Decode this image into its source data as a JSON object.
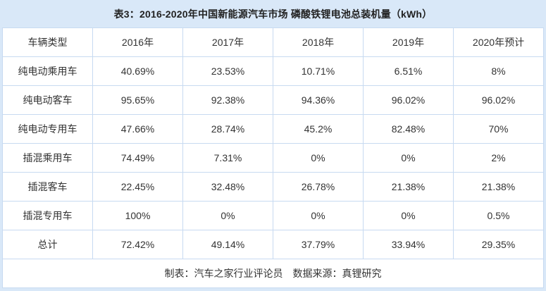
{
  "page": {
    "title": "表3：2016-2020年中国新能源汽车市场 磷酸铁锂电池总装机量（kWh）"
  },
  "table": {
    "columns": [
      "车辆类型",
      "2016年",
      "2017年",
      "2018年",
      "2019年",
      "2020年预计"
    ],
    "rows": [
      [
        "纯电动乘用车",
        "40.69%",
        "23.53%",
        "10.71%",
        "6.51%",
        "8%"
      ],
      [
        "纯电动客车",
        "95.65%",
        "92.38%",
        "94.36%",
        "96.02%",
        "96.02%"
      ],
      [
        "纯电动专用车",
        "47.66%",
        "28.74%",
        "45.2%",
        "82.48%",
        "70%"
      ],
      [
        "插混乘用车",
        "74.49%",
        "7.31%",
        "0%",
        "0%",
        "2%"
      ],
      [
        "插混客车",
        "22.45%",
        "32.48%",
        "26.78%",
        "21.38%",
        "21.38%"
      ],
      [
        "插混专用车",
        "100%",
        "0%",
        "0%",
        "0%",
        "0.5%"
      ],
      [
        "总计",
        "72.42%",
        "49.14%",
        "37.79%",
        "33.94%",
        "29.35%"
      ]
    ]
  },
  "footer": {
    "maker": "制表：汽车之家行业评论员",
    "source": "数据来源：真锂研究"
  },
  "colors": {
    "band_bg": "#d9e8f8",
    "grid_border": "#c7daf1",
    "text": "#333333",
    "title_text": "#222222",
    "cell_bg": "#ffffff"
  },
  "chart_data": {
    "type": "table",
    "title": "表3：2016-2020年中国新能源汽车市场 磷酸铁锂电池总装机量（kWh）",
    "categories": [
      "2016年",
      "2017年",
      "2018年",
      "2019年",
      "2020年预计"
    ],
    "series": [
      {
        "name": "纯电动乘用车",
        "values": [
          40.69,
          23.53,
          10.71,
          6.51,
          8
        ]
      },
      {
        "name": "纯电动客车",
        "values": [
          95.65,
          92.38,
          94.36,
          96.02,
          96.02
        ]
      },
      {
        "name": "纯电动专用车",
        "values": [
          47.66,
          28.74,
          45.2,
          82.48,
          70
        ]
      },
      {
        "name": "插混乘用车",
        "values": [
          74.49,
          7.31,
          0,
          0,
          2
        ]
      },
      {
        "name": "插混客车",
        "values": [
          22.45,
          32.48,
          26.78,
          21.38,
          21.38
        ]
      },
      {
        "name": "插混专用车",
        "values": [
          100,
          0,
          0,
          0,
          0.5
        ]
      },
      {
        "name": "总计",
        "values": [
          72.42,
          49.14,
          37.79,
          33.94,
          29.35
        ]
      }
    ],
    "unit": "%",
    "notes": "制表：汽车之家行业评论员 数据来源：真锂研究"
  }
}
